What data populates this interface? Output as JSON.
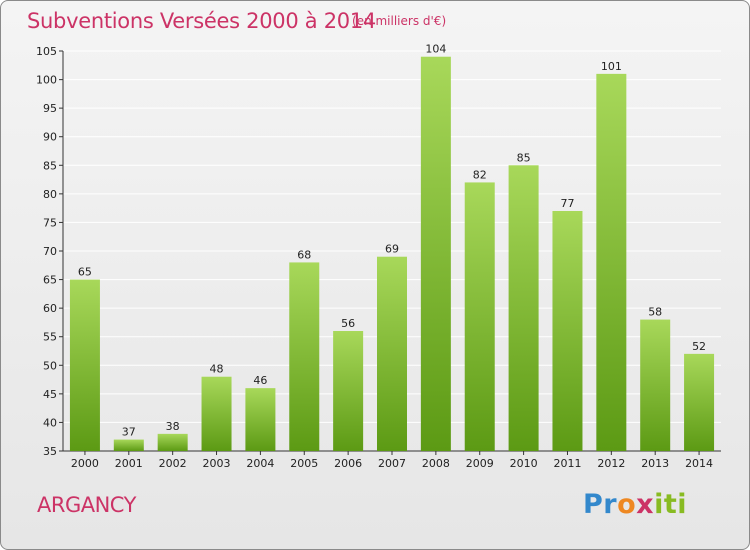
{
  "header": {
    "title": "Subventions Versées 2000 à 2014",
    "unit_note": "(en milliers d'€)"
  },
  "footer": {
    "commune": "ARGANCY",
    "logo_text": "Proxiti"
  },
  "colors": {
    "title": "#cc3366",
    "bar_light": "#a8d85a",
    "bar_dark": "#5c9a14",
    "grid": "#ffffff"
  },
  "chart_data": {
    "type": "bar",
    "title": "Subventions Versées 2000 à 2014",
    "subtitle": "(en milliers d'€)",
    "xlabel": "",
    "ylabel": "",
    "categories": [
      "2000",
      "2001",
      "2002",
      "2003",
      "2004",
      "2005",
      "2006",
      "2007",
      "2008",
      "2009",
      "2010",
      "2011",
      "2012",
      "2013",
      "2014"
    ],
    "values": [
      65,
      37,
      38,
      48,
      46,
      68,
      56,
      69,
      104,
      82,
      85,
      77,
      101,
      58,
      52
    ],
    "ylim": [
      35,
      105
    ],
    "yticks": [
      35,
      40,
      45,
      50,
      55,
      60,
      65,
      70,
      75,
      80,
      85,
      90,
      95,
      100,
      105
    ],
    "grid": true,
    "legend": "none"
  }
}
